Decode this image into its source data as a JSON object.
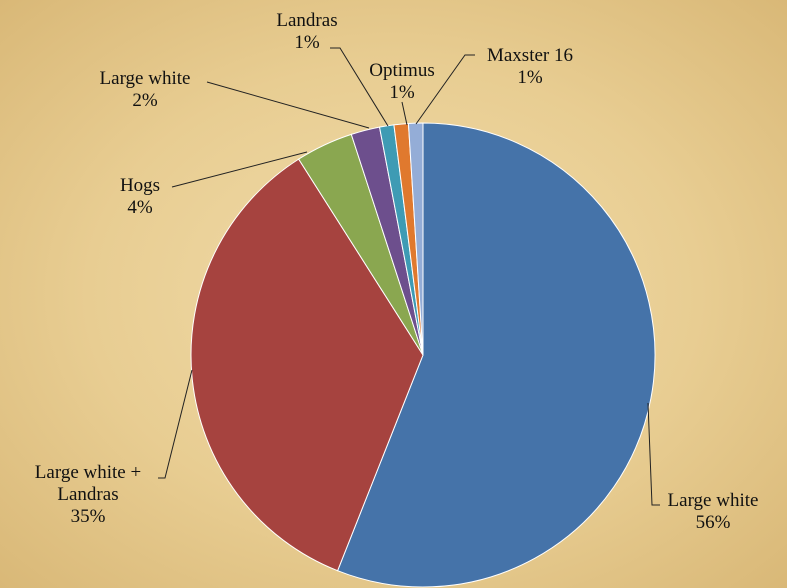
{
  "chart_data": {
    "type": "pie",
    "categories": [
      "Large white",
      "Large white + Landras",
      "Hogs",
      "Large white",
      "Landras",
      "Optimus",
      "Maxster 16"
    ],
    "values": [
      56,
      35,
      4,
      2,
      1,
      1,
      1
    ],
    "value_labels": [
      "56%",
      "35%",
      "4%",
      "2%",
      "1%",
      "1%",
      "1%"
    ],
    "colors": [
      "#4573a9",
      "#a6433f",
      "#8aa750",
      "#6d4f8d",
      "#3e9bb4",
      "#e0792e",
      "#94add7"
    ]
  }
}
